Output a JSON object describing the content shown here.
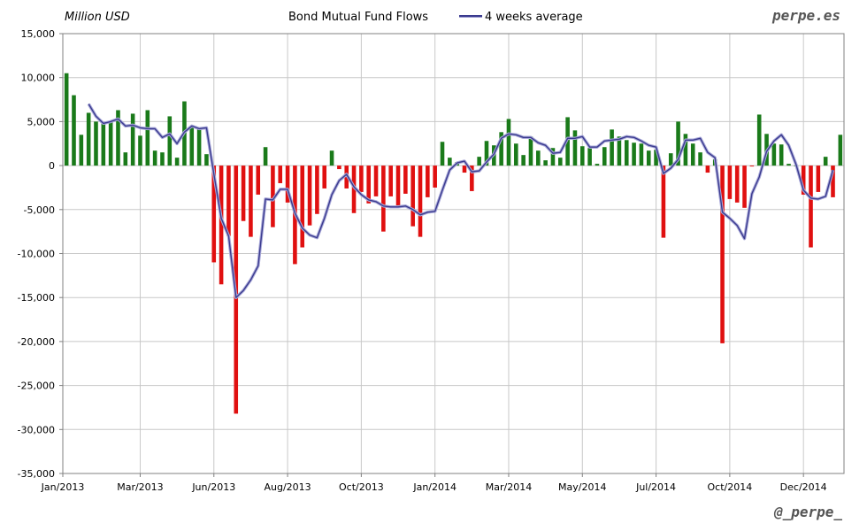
{
  "chart_data": {
    "type": "bar",
    "title": "Bond Mutual Fund Flows",
    "ylabel": "Million USD",
    "legend_label": "4 weeks average",
    "legend_position": "top-center",
    "brand": "perpe.es",
    "handle": "@_perpe_",
    "ylim": [
      -35000,
      15000
    ],
    "yticks": [
      15000,
      10000,
      5000,
      0,
      -5000,
      -10000,
      -15000,
      -20000,
      -25000,
      -30000,
      -35000
    ],
    "ytick_labels": [
      "15,000",
      "10,000",
      "5,000",
      "0",
      "-5,000",
      "-10,000",
      "-15,000",
      "-20,000",
      "-25,000",
      "-30,000",
      "-35,000"
    ],
    "xtick_labels": [
      "Jan/2013",
      "Mar/2013",
      "Jun/2013",
      "Aug/2013",
      "Oct/2013",
      "Jan/2014",
      "Mar/2014",
      "May/2014",
      "Jul/2014",
      "Oct/2014",
      "Dec/2014"
    ],
    "xtick_week_index": [
      0,
      10,
      20,
      30,
      40,
      50,
      60,
      70,
      80,
      90,
      100
    ],
    "colors": {
      "positive": "#1a7a1a",
      "negative": "#e01010",
      "average": "#3b3b8f",
      "grid": "#c8c8c8"
    },
    "series": [
      {
        "name": "Weekly flows",
        "values": [
          10500,
          8000,
          3500,
          6000,
          5000,
          4800,
          4900,
          6300,
          1500,
          5900,
          3400,
          6300,
          1700,
          1500,
          5600,
          900,
          7300,
          4400,
          4200,
          1300,
          -11000,
          -13500,
          -8000,
          -28200,
          -6300,
          -8100,
          -3300,
          2100,
          -7000,
          -2000,
          -4200,
          -11200,
          -9300,
          -6800,
          -5500,
          -2600,
          1700,
          -400,
          -2600,
          -5400,
          -3000,
          -4300,
          -3500,
          -7500,
          -3500,
          -4800,
          -3200,
          -6900,
          -8100,
          -3600,
          -2500,
          2700,
          900,
          400,
          -800,
          -2900,
          1000,
          2800,
          2300,
          3800,
          5300,
          2500,
          1200,
          3300,
          1700,
          600,
          2000,
          900,
          5500,
          4000,
          2200,
          2000,
          200,
          2100,
          4100,
          3300,
          2900,
          2600,
          2500,
          1700,
          1800,
          -8200,
          1400,
          5000,
          3600,
          2500,
          1500,
          -800,
          700,
          -20200,
          -3800,
          -4200,
          -4800,
          -100,
          5800,
          3600,
          2500,
          2400,
          200,
          0,
          -3300,
          -9300,
          -3000,
          1000,
          -3600,
          3500
        ]
      },
      {
        "name": "4 weeks average",
        "values": [
          null,
          null,
          null,
          7000,
          5600,
          4800,
          5000,
          5300,
          4500,
          4600,
          4300,
          4200,
          4200,
          3200,
          3600,
          2500,
          3800,
          4500,
          4200,
          4300,
          -1000,
          -6000,
          -8000,
          -15000,
          -14200,
          -13000,
          -11400,
          -3800,
          -3900,
          -2700,
          -2700,
          -5400,
          -7100,
          -7900,
          -8200,
          -6000,
          -3300,
          -1700,
          -1000,
          -2400,
          -3300,
          -3900,
          -4100,
          -4600,
          -4700,
          -4700,
          -4600,
          -5000,
          -5600,
          -5300,
          -5200,
          -2800,
          -500,
          300,
          500,
          -700,
          -600,
          400,
          1300,
          3100,
          3600,
          3500,
          3200,
          3200,
          2600,
          2300,
          1400,
          1500,
          3100,
          3100,
          3300,
          2100,
          2100,
          2800,
          2900,
          3000,
          3300,
          3200,
          2800,
          2300,
          2100,
          -900,
          -300,
          700,
          2900,
          2900,
          3100,
          1500,
          900,
          -5300,
          -6000,
          -6800,
          -8300,
          -3200,
          -1300,
          1600,
          2800,
          3500,
          2300,
          100,
          -2800,
          -3700,
          -3800,
          -3500,
          -500
        ]
      }
    ]
  }
}
